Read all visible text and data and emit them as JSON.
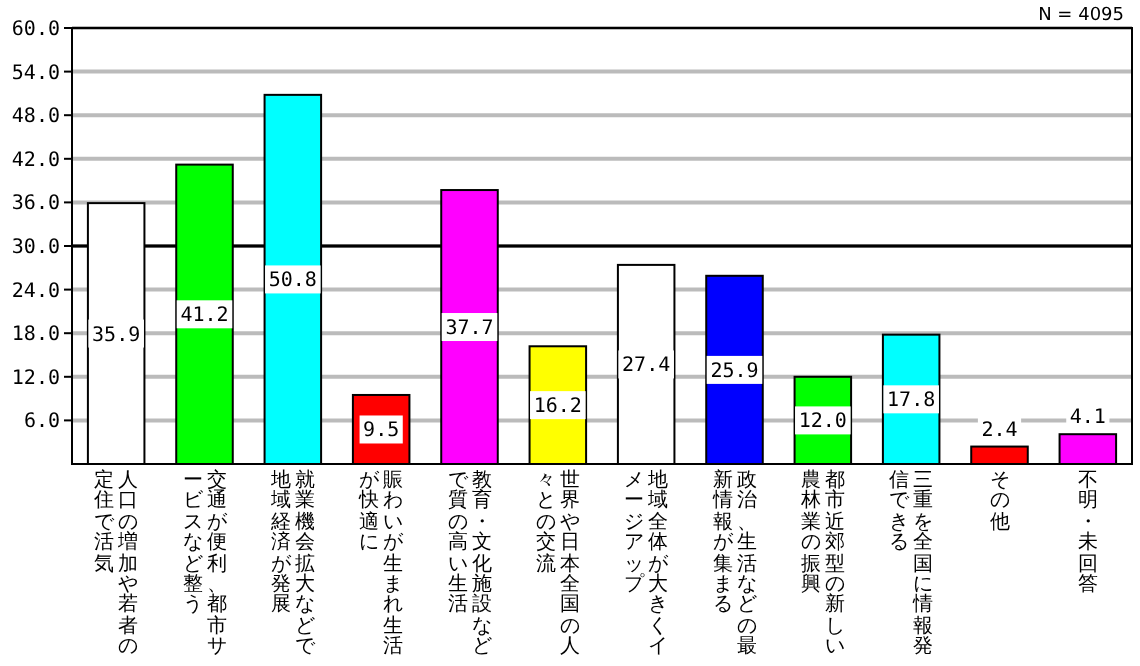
{
  "chart_data": {
    "type": "bar",
    "categories": [
      "人口の増加や若者の定住で活気",
      "交通が便利、都市サービスなど整う",
      "就業機会拡大などで地域経済が発展",
      "賑わいが生まれ生活が快適に",
      "教育・文化施設などで質の高い生活",
      "世界や日本全国の人々との交流",
      "地域全体が大きくイメージアップ",
      "政治、生活などの最新情報が集まる",
      "都市近郊型の新しい農林業の振興",
      "三重を全国に情報発信できる",
      "その他",
      "不明・未回答"
    ],
    "values": [
      35.9,
      41.2,
      50.8,
      9.5,
      37.7,
      16.2,
      27.4,
      25.9,
      12.0,
      17.8,
      2.4,
      4.1
    ],
    "colors": [
      "#ffffff",
      "#00ff00",
      "#00ffff",
      "#ff0000",
      "#ff00ff",
      "#ffff00",
      "#ffffff",
      "#0000ff",
      "#00ff00",
      "#00ffff",
      "#ff0000",
      "#ff00ff"
    ],
    "value_labels": [
      "35.9",
      "41.2",
      "50.8",
      "9.5",
      "37.7",
      "16.2",
      "27.4",
      "25.9",
      "12.0",
      "17.8",
      "2.4",
      "4.1"
    ],
    "ylim": [
      0,
      60
    ],
    "yticks": [
      {
        "value": 6,
        "label": "6.0"
      },
      {
        "value": 12,
        "label": "12.0"
      },
      {
        "value": 18,
        "label": "18.0"
      },
      {
        "value": 24,
        "label": "24.0"
      },
      {
        "value": 30,
        "label": "30.0"
      },
      {
        "value": 36,
        "label": "36.0"
      },
      {
        "value": 42,
        "label": "42.0"
      },
      {
        "value": 48,
        "label": "48.0"
      },
      {
        "value": 54,
        "label": "54.0"
      },
      {
        "value": 60,
        "label": "60.0"
      }
    ],
    "grid": "y",
    "ref_lines": [
      {
        "axis": "y",
        "value": 30,
        "color": "#000000"
      }
    ],
    "annotations": [
      "N = 4095"
    ]
  }
}
